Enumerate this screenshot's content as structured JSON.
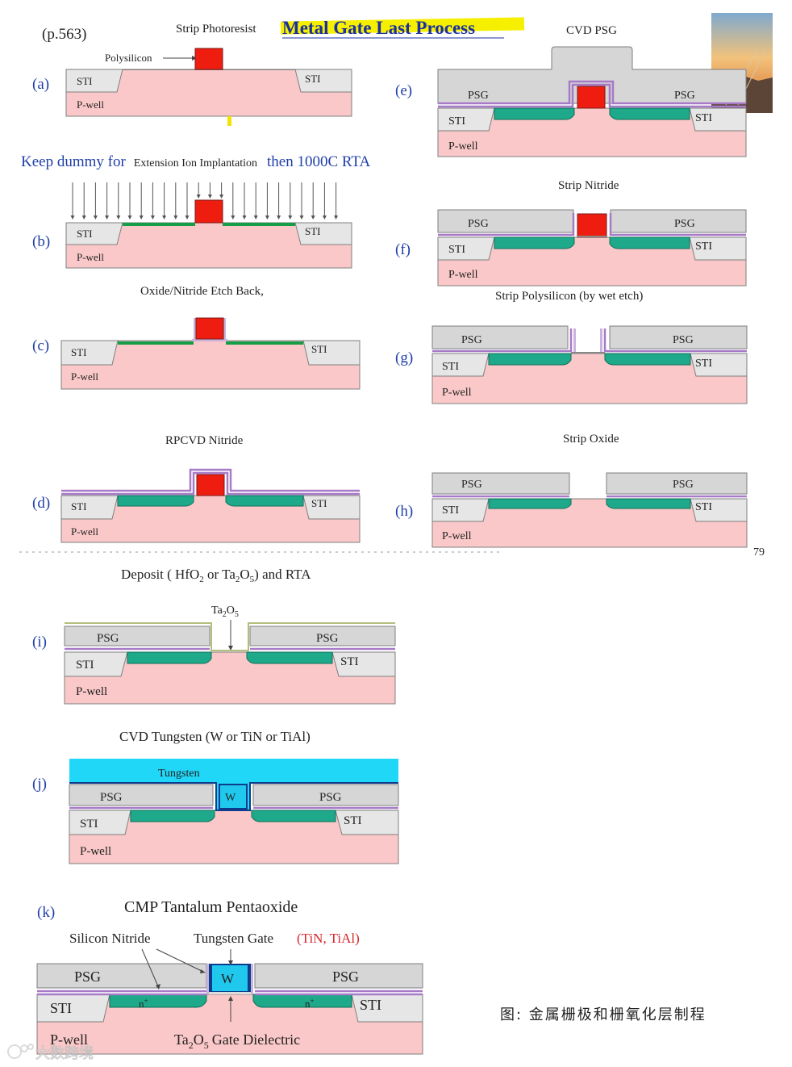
{
  "header": {
    "page_ref": "(p.563)",
    "strip_photoresist": "Strip Photoresist",
    "title": "Metal Gate Last Process",
    "polysilicon": "Polysilicon",
    "keep_dummy_left": "Keep dummy for",
    "keep_dummy_mid": "Extension Ion Implantation",
    "keep_dummy_right": "then 1000C RTA"
  },
  "labels": {
    "sti": "STI",
    "pwell": "P-well",
    "psg": "PSG",
    "w": "W",
    "nplus": "n",
    "nplus_sup": "+"
  },
  "steps": {
    "a": "(a)",
    "b": "(b)",
    "c": "(c)",
    "d": "(d)",
    "e": "(e)",
    "f": "(f)",
    "g": "(g)",
    "h": "(h)",
    "i": "(i)",
    "j": "(j)",
    "k": "(k)"
  },
  "captions": {
    "c": "Oxide/Nitride Etch Back,",
    "d": "RPCVD Nitride",
    "e": "CVD PSG",
    "f": "Strip Nitride",
    "g": "Strip Polysilicon (by wet etch)",
    "h": "Strip Oxide",
    "i_prefix": "Deposit ( HfO",
    "i_mid": " or Ta",
    "i_mid2": "O",
    "i_suffix": ") and RTA",
    "i_sub2": "2",
    "i_sub5": "5",
    "ta2o5_a": "Ta",
    "ta2o5_b": "O",
    "j": "CVD Tungsten (W or TiN or TiAl)",
    "tungsten": "Tungsten",
    "k": "CMP Tantalum Pentaoxide",
    "silicon_nitride": "Silicon Nitride",
    "tungsten_gate": "Tungsten Gate",
    "tin_tial": "(TiN, TiAl)",
    "gate_dielectric": "Gate Dielectric"
  },
  "footer": {
    "page_num": "79",
    "caption_cn": "图: 金属栅极和栅氧化层制程",
    "watermark": "大数跨境"
  }
}
